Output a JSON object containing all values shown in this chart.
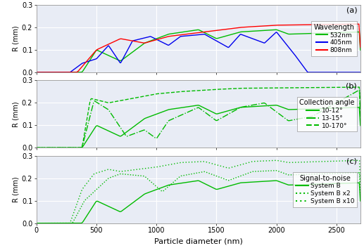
{
  "title": "",
  "xlabel": "Particle diameter (nm)",
  "ylabel": "R (mm)",
  "xlim": [
    0,
    2700
  ],
  "ylim": [
    0.0,
    0.3
  ],
  "yticks": [
    0.0,
    0.1,
    0.2,
    0.3
  ],
  "xticks": [
    0,
    500,
    1000,
    1500,
    2000,
    2500
  ],
  "background_color": "#e8ecf5",
  "grid_color": "#ffffff",
  "panel_labels": [
    "(a)",
    "(b)",
    "(c)"
  ],
  "legend_a_title": "Wavelength",
  "legend_a_entries": [
    "532nm",
    "405nm",
    "808nm"
  ],
  "legend_a_colors": [
    "#00bb00",
    "#0000ee",
    "#ff0000"
  ],
  "legend_b_title": "Collection angle",
  "legend_b_entries": [
    "10-12°",
    "13-15°",
    "10-170°"
  ],
  "legend_b_styles": [
    "solid",
    "dashdot",
    "dashed"
  ],
  "legend_c_title": "Signal-to-noise",
  "legend_c_entries": [
    "System B",
    "System B x2",
    "System B x10"
  ],
  "legend_c_styles": [
    "solid",
    "dotted",
    "dotted"
  ]
}
